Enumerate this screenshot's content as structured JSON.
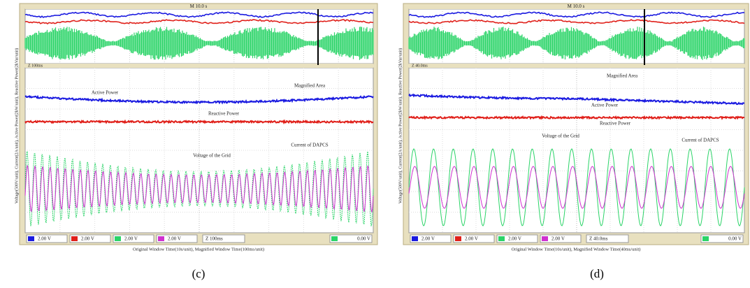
{
  "panels": [
    {
      "caption": "(c)",
      "overview_time": "M 10.0 s",
      "magnified_label": "Magnified Area",
      "active_power": "Active Power",
      "reactive_power": "Reactive Power",
      "grid_voltage": "Voltage of the Grid",
      "dapcs_current": "Current of DAPCS",
      "channels": [
        "2.00 V",
        "2.00 V",
        "2.00 V",
        "2.00 V"
      ],
      "timebase": "Z 100ms",
      "trigger": "0.00 V",
      "y_label": "Voltage(500V/unit), Current(2A/unit), Active Power(2kW/unit), Reactive Power(2kVar/unit)",
      "x_label": "Original Window Time(10s/unit), Magnified Window Time(100ms/unit)"
    },
    {
      "caption": "(d)",
      "overview_time": "M 10.0 s",
      "magnified_label": "Magnified Area",
      "active_power": "Active Power",
      "reactive_power": "Reactive Power",
      "grid_voltage": "Voltage of the Grid",
      "dapcs_current": "Current of DAPCS",
      "channels": [
        "2.00 V",
        "2.00 V",
        "2.00 V",
        "2.00 V"
      ],
      "timebase": "Z 40.0ms",
      "trigger": "0.00 V",
      "y_label": "Voltage(500V/unit), Current(2A/unit), Active Power(2kW/unit), Reactive Power(2kVar/unit)",
      "x_label": "Original Window Time(10s/unit), Magnified Window Time(40ms/unit)"
    }
  ]
}
